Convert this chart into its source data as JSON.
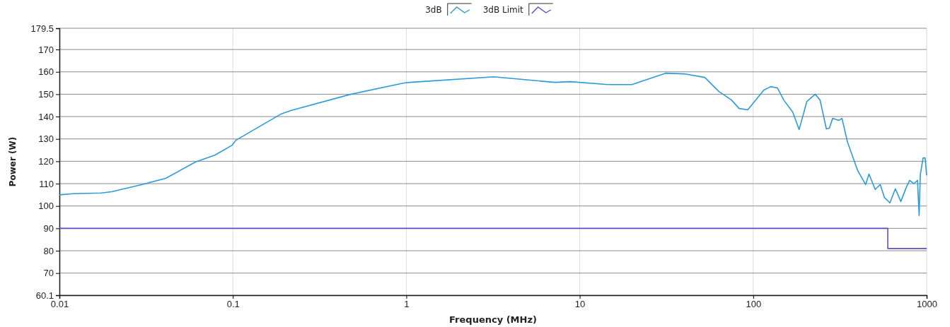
{
  "chart_data": {
    "type": "line",
    "xlabel": "Frequency (MHz)",
    "ylabel": "Power (W)",
    "log": "x",
    "xlim": [
      0.01,
      1000
    ],
    "xticks": [
      0.01,
      0.1,
      1,
      10,
      100,
      1000
    ],
    "ylim": [
      60.1,
      179.5
    ],
    "yticks": [
      60.1,
      70,
      80,
      90,
      100,
      110,
      120,
      130,
      140,
      150,
      160,
      170,
      179.5
    ],
    "grid": true,
    "legend": "top",
    "line_style": "solid",
    "marker": "none",
    "series": [
      {
        "name": "3dB",
        "color": "#2b9ad8",
        "x": [
          0.01,
          0.012,
          0.0174,
          0.02,
          0.03,
          0.041,
          0.061,
          0.079,
          0.099,
          0.104,
          0.189,
          0.216,
          0.48,
          0.97,
          1.05,
          3.2,
          4.69,
          7.2,
          8.8,
          14.6,
          20,
          31.2,
          40,
          52.6,
          63.5,
          75,
          83,
          93,
          115,
          126,
          138,
          150,
          169,
          184,
          204,
          228,
          243,
          264,
          275,
          287,
          312,
          325,
          350,
          400,
          445,
          465,
          505,
          540,
          570,
          614,
          660,
          710,
          760,
          798,
          843,
          886,
          905,
          919,
          954,
          980,
          1000
        ],
        "values": [
          105,
          105.5,
          105.8,
          106.4,
          109.6,
          112.4,
          119.7,
          122.8,
          127.2,
          129.4,
          141.1,
          142.7,
          150,
          155,
          155.3,
          157.8,
          156.6,
          155.3,
          155.6,
          154.3,
          154.3,
          159.4,
          159.1,
          157.5,
          151.2,
          147.4,
          143.6,
          143,
          151.8,
          153.4,
          152.8,
          147.4,
          142,
          134.2,
          146.8,
          150,
          147.4,
          134.5,
          134.8,
          139.2,
          138.3,
          139.2,
          128.5,
          115.9,
          109.6,
          114.3,
          107.4,
          109.6,
          103.9,
          101.4,
          107.7,
          102,
          108,
          111.5,
          110,
          111.5,
          95.7,
          114,
          121.5,
          121.5,
          113.7
        ]
      },
      {
        "name": "3dB Limit",
        "color": "#5a4fc4",
        "type": "step",
        "x": [
          0.01,
          597,
          597,
          1000
        ],
        "values": [
          90,
          90,
          81,
          81
        ]
      }
    ]
  }
}
